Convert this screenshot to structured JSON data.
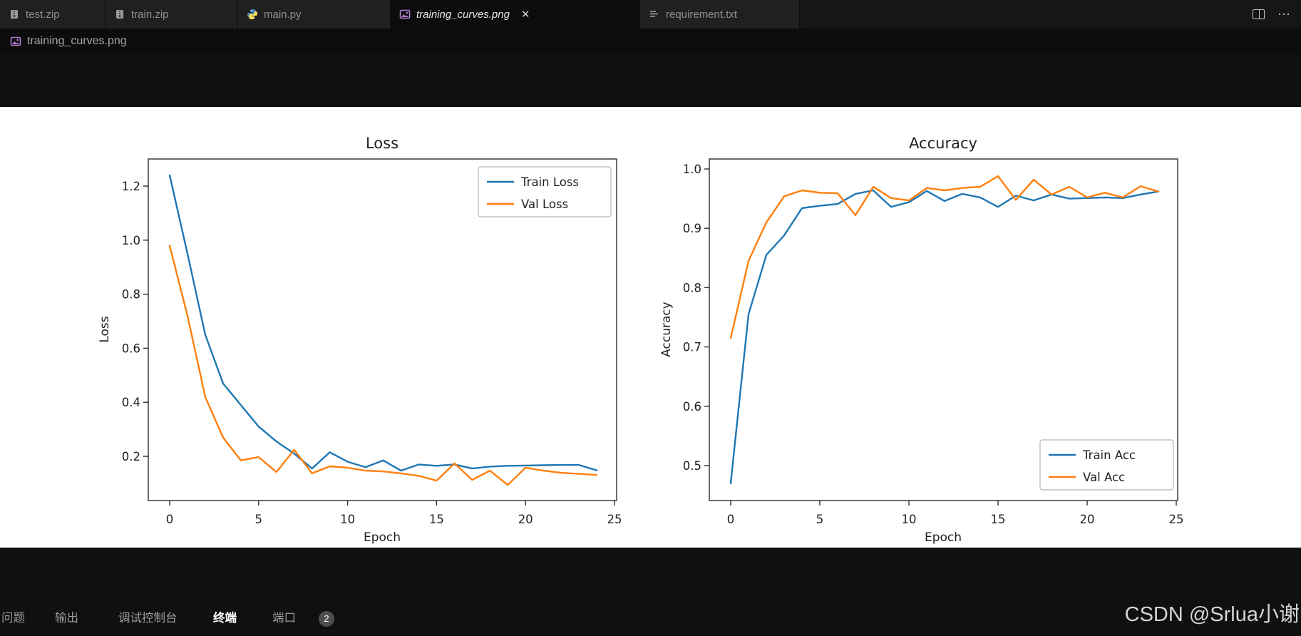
{
  "tabbar": {
    "tabs": [
      {
        "label": "test.zip",
        "icon": "zip-icon"
      },
      {
        "label": "train.zip",
        "icon": "zip-icon"
      },
      {
        "label": "main.py",
        "icon": "python-icon"
      },
      {
        "label": "training_curves.png",
        "icon": "image-icon",
        "active": true
      },
      {
        "label": "requirement.txt",
        "icon": "list-icon"
      }
    ],
    "close_glyph": "✕",
    "more_glyph": "⋯"
  },
  "breadcrumb": {
    "label": "training_curves.png"
  },
  "panel": {
    "items": [
      {
        "label": "问题"
      },
      {
        "label": "输出"
      },
      {
        "label": "调试控制台"
      },
      {
        "label": "终端",
        "active": true
      },
      {
        "label": "端口",
        "badge": "2"
      }
    ]
  },
  "watermark": "CSDN @Srlua小谢",
  "chart_data": [
    {
      "type": "line",
      "title": "Loss",
      "xlabel": "Epoch",
      "ylabel": "Loss",
      "xlim": [
        -1.2,
        25.2
      ],
      "ylim": [
        0.04,
        1.3
      ],
      "grid": false,
      "legend_position": "upper right",
      "xticks": [
        {
          "v": 0,
          "label": "0"
        },
        {
          "v": 5,
          "label": "5"
        },
        {
          "v": 10,
          "label": "10"
        },
        {
          "v": 15,
          "label": "15"
        },
        {
          "v": 20,
          "label": "20"
        },
        {
          "v": 25,
          "label": "25"
        }
      ],
      "yticks": [
        {
          "v": 0.2,
          "label": "0.2"
        },
        {
          "v": 0.4,
          "label": "0.4"
        },
        {
          "v": 0.6,
          "label": "0.6"
        },
        {
          "v": 0.8,
          "label": "0.8"
        },
        {
          "v": 1.0,
          "label": "1.0"
        },
        {
          "v": 1.2,
          "label": "1.2"
        }
      ],
      "x": [
        0,
        1,
        2,
        3,
        4,
        5,
        6,
        7,
        8,
        9,
        10,
        11,
        12,
        13,
        14,
        15,
        16,
        17,
        18,
        19,
        20,
        21,
        22,
        23,
        24
      ],
      "series": [
        {
          "name": "Train Loss",
          "color": "#1f77b4",
          "values": [
            1.24,
            0.95,
            0.65,
            0.47,
            0.39,
            0.31,
            0.255,
            0.21,
            0.155,
            0.215,
            0.18,
            0.16,
            0.185,
            0.147,
            0.17,
            0.165,
            0.17,
            0.155,
            0.162,
            0.165,
            0.166,
            0.167,
            0.168,
            0.168,
            0.148
          ]
        },
        {
          "name": "Val Loss",
          "color": "#ff7f0e",
          "values": [
            0.98,
            0.72,
            0.42,
            0.27,
            0.185,
            0.197,
            0.142,
            0.224,
            0.137,
            0.163,
            0.158,
            0.147,
            0.144,
            0.137,
            0.128,
            0.11,
            0.174,
            0.113,
            0.147,
            0.094,
            0.158,
            0.147,
            0.139,
            0.135,
            0.131
          ]
        }
      ]
    },
    {
      "type": "line",
      "title": "Accuracy",
      "xlabel": "Epoch",
      "ylabel": "Accuracy",
      "xlim": [
        -1.2,
        25.2
      ],
      "ylim": [
        0.44,
        1.02
      ],
      "grid": false,
      "legend_position": "lower right",
      "xticks": [
        {
          "v": 0,
          "label": "0"
        },
        {
          "v": 5,
          "label": "5"
        },
        {
          "v": 10,
          "label": "10"
        },
        {
          "v": 15,
          "label": "15"
        },
        {
          "v": 20,
          "label": "20"
        },
        {
          "v": 25,
          "label": "25"
        }
      ],
      "yticks": [
        {
          "v": 0.5,
          "label": "0.5"
        },
        {
          "v": 0.6,
          "label": "0.6"
        },
        {
          "v": 0.7,
          "label": "0.7"
        },
        {
          "v": 0.8,
          "label": "0.8"
        },
        {
          "v": 0.9,
          "label": "0.9"
        },
        {
          "v": 1.0,
          "label": "1.0"
        }
      ],
      "x": [
        0,
        1,
        2,
        3,
        4,
        5,
        6,
        7,
        8,
        9,
        10,
        11,
        12,
        13,
        14,
        15,
        16,
        17,
        18,
        19,
        20,
        21,
        22,
        23,
        24
      ],
      "series": [
        {
          "name": "Train Acc",
          "color": "#1f77b4",
          "values": [
            0.47,
            0.755,
            0.855,
            0.888,
            0.934,
            0.938,
            0.941,
            0.958,
            0.964,
            0.936,
            0.944,
            0.963,
            0.946,
            0.958,
            0.952,
            0.936,
            0.955,
            0.947,
            0.957,
            0.95,
            0.951,
            0.952,
            0.951,
            0.957,
            0.962
          ]
        },
        {
          "name": "Val Acc",
          "color": "#ff7f0e",
          "values": [
            0.715,
            0.845,
            0.91,
            0.954,
            0.964,
            0.96,
            0.959,
            0.922,
            0.97,
            0.951,
            0.947,
            0.968,
            0.964,
            0.968,
            0.97,
            0.988,
            0.948,
            0.982,
            0.957,
            0.97,
            0.952,
            0.96,
            0.952,
            0.971,
            0.962
          ]
        }
      ]
    }
  ]
}
